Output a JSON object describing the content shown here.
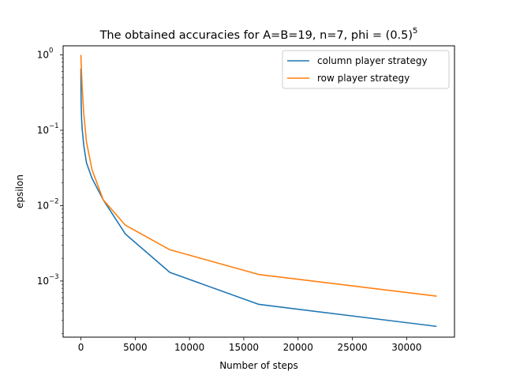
{
  "chart_data": {
    "type": "line",
    "title": "The obtained accuracies for A=B=19, n=7, phi = (0.5)",
    "title_superscript": "5",
    "xlabel": "Number of steps",
    "ylabel": "epsilon",
    "xlim": [
      -1638,
      34406
    ],
    "ylim": [
      0.00018,
      1.32
    ],
    "yscale": "log",
    "grid": false,
    "legend_position": "top-right",
    "x_ticks": [
      0,
      5000,
      10000,
      15000,
      20000,
      25000,
      30000
    ],
    "x_tick_labels": [
      "0",
      "5000",
      "10000",
      "15000",
      "20000",
      "25000",
      "30000"
    ],
    "y_ticks": [
      0.001,
      0.01,
      0.1,
      1
    ],
    "y_tick_labels": [
      "10",
      "10",
      "10",
      "10"
    ],
    "y_tick_exponents": [
      "−3",
      "−2",
      "−1",
      "0"
    ],
    "series": [
      {
        "name": "column player strategy",
        "color": "#1f77b4",
        "x": [
          1,
          2,
          4,
          8,
          16,
          32,
          64,
          128,
          256,
          512,
          1024,
          2048,
          4096,
          8192,
          16384,
          32768
        ],
        "y": [
          0.66,
          0.54,
          0.44,
          0.35,
          0.27,
          0.2,
          0.14,
          0.1,
          0.064,
          0.037,
          0.023,
          0.012,
          0.0042,
          0.0013,
          0.00049,
          0.00025
        ]
      },
      {
        "name": "row player strategy",
        "color": "#ff7f0e",
        "x": [
          1,
          2,
          4,
          8,
          16,
          32,
          64,
          128,
          256,
          512,
          1024,
          2048,
          4096,
          8192,
          16384,
          32768
        ],
        "y": [
          1.0,
          0.98,
          0.95,
          0.9,
          0.82,
          0.7,
          0.55,
          0.35,
          0.17,
          0.07,
          0.03,
          0.012,
          0.0055,
          0.0026,
          0.00122,
          0.00063
        ]
      }
    ]
  }
}
